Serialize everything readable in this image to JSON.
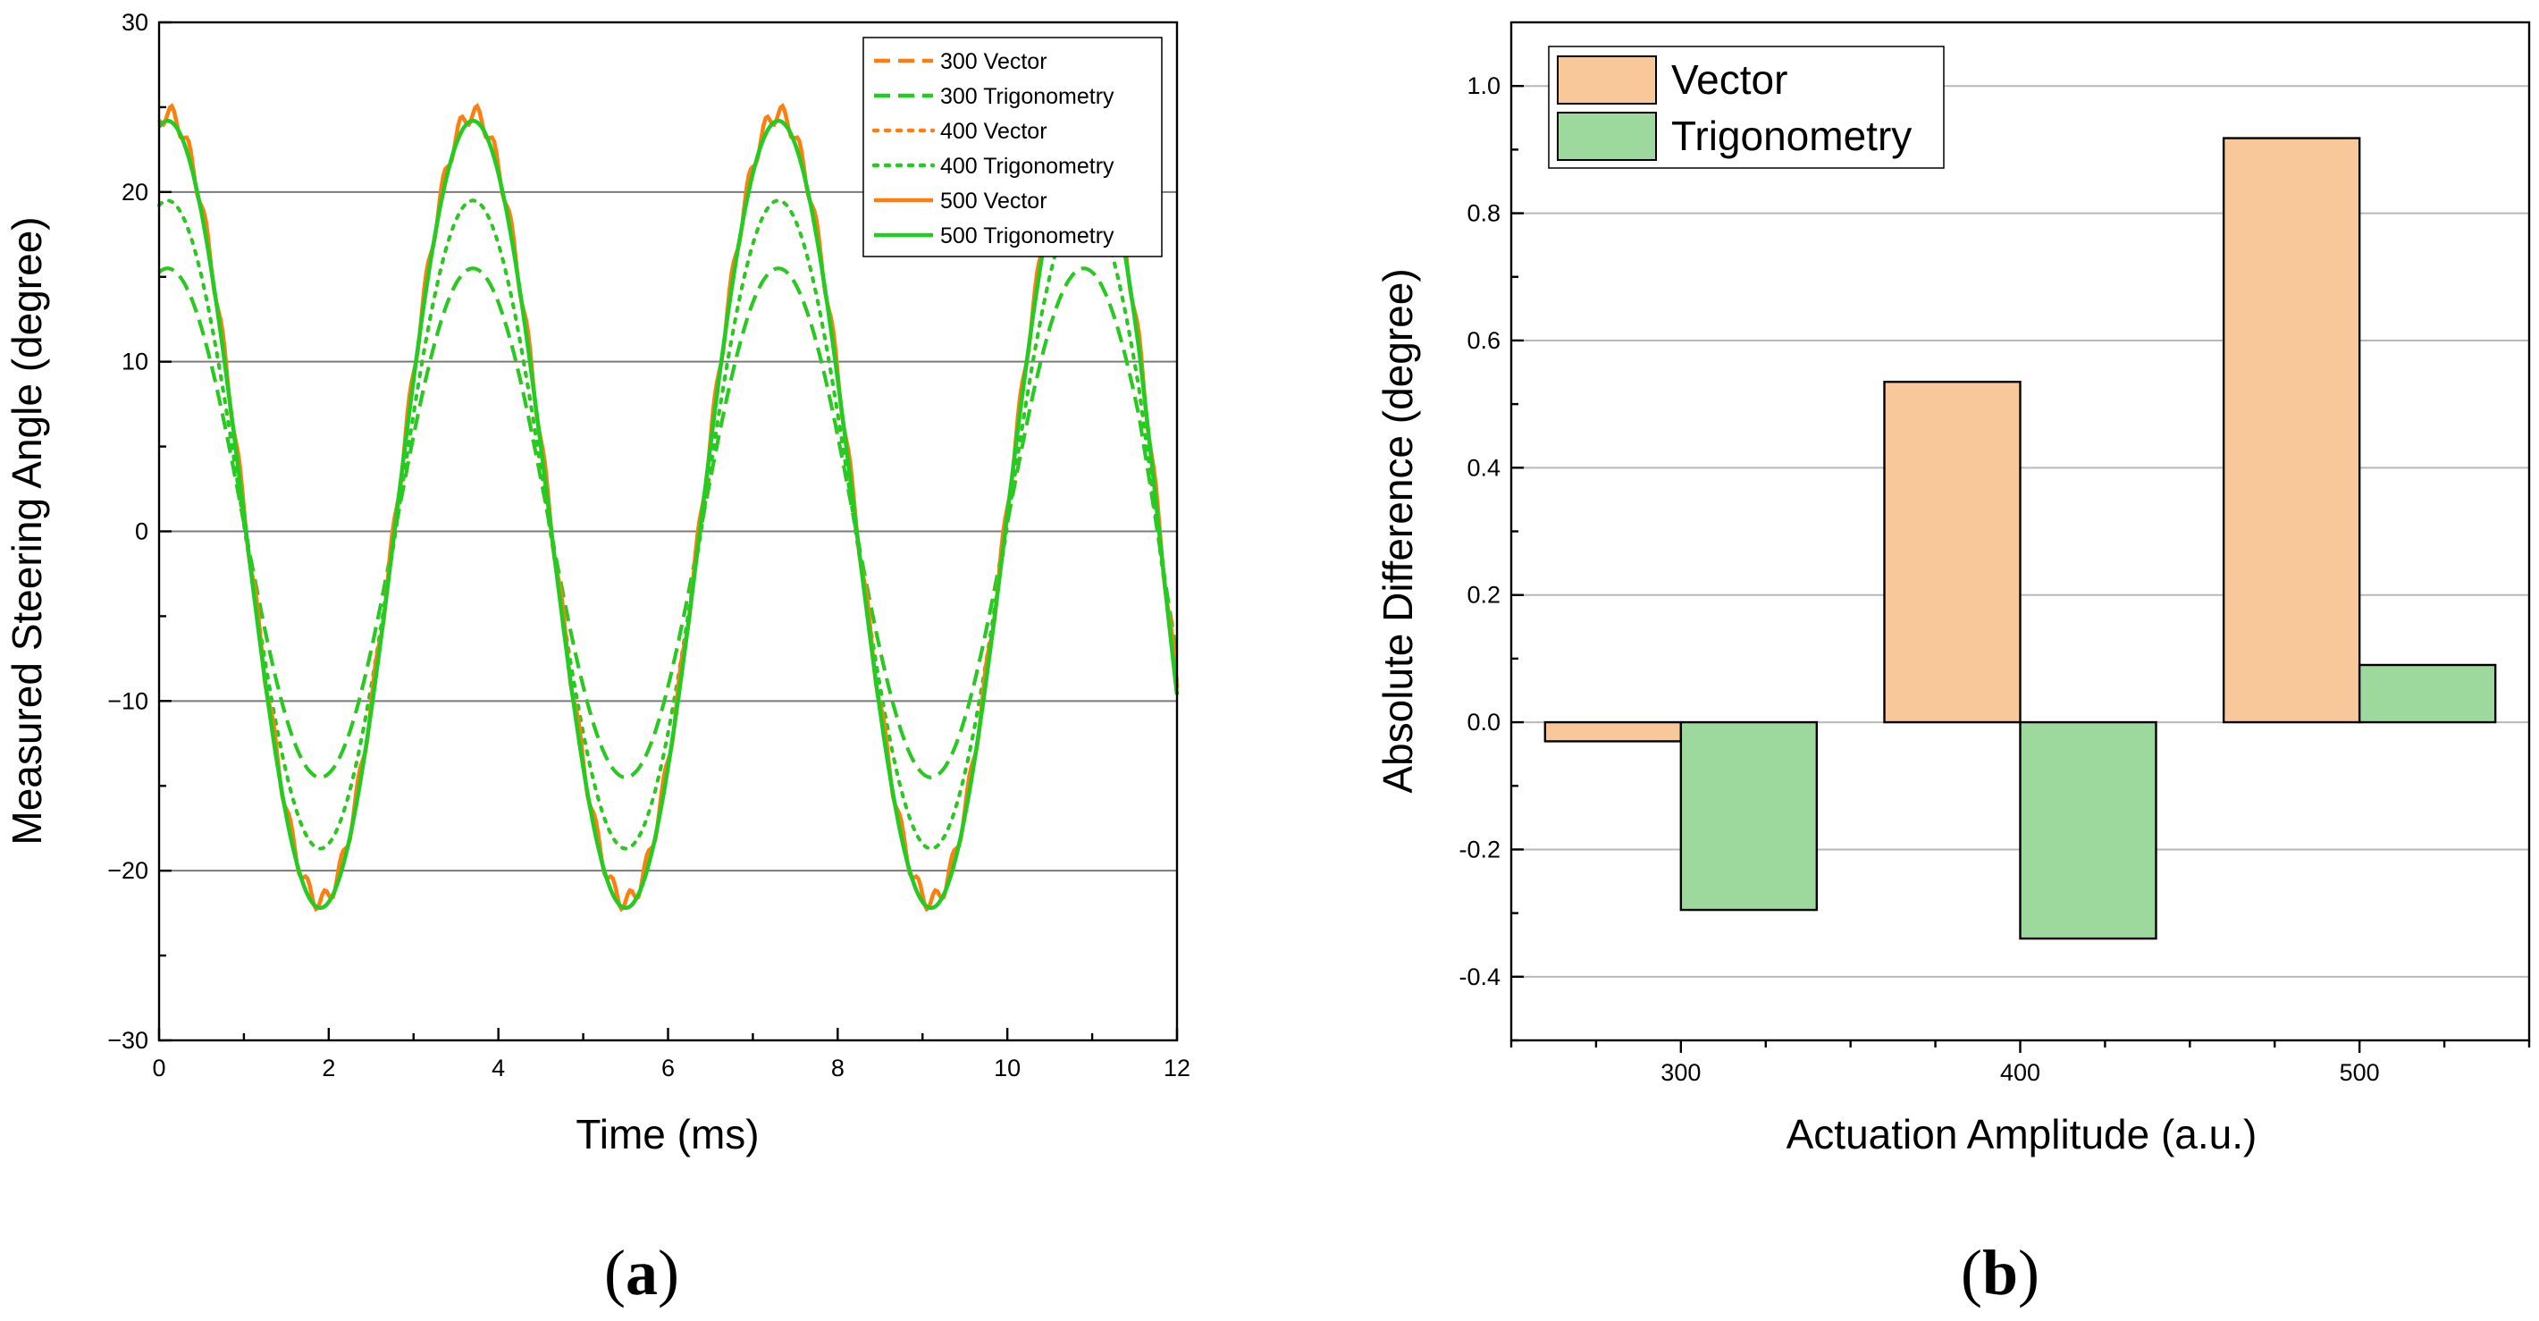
{
  "colors": {
    "vector": "#ff7f0e",
    "trigonometry": "#22cc22",
    "vector_bar": "#f8c79a",
    "trigonometry_bar": "#9dd89d"
  },
  "chart_data": [
    {
      "panel_label": "a",
      "type": "line",
      "xlabel": "Time (ms)",
      "ylabel": "Measured Steering Angle (degree)",
      "xlim": [
        0,
        12
      ],
      "ylim": [
        -30,
        30
      ],
      "xticks": [
        "0",
        "2",
        "4",
        "6",
        "8",
        "10",
        "12"
      ],
      "yticks": [
        "30",
        "20",
        "10",
        "0",
        "−10",
        "−20",
        "−30"
      ],
      "period_ms": 3.6,
      "series": [
        {
          "name": "300 Vector",
          "style": "dash",
          "color_key": "vector",
          "max": 15.5,
          "min": -14.5
        },
        {
          "name": "300 Trigonometry",
          "style": "dash",
          "color_key": "trigonometry",
          "max": 15.5,
          "min": -14.5
        },
        {
          "name": "400 Vector",
          "style": "dot",
          "color_key": "vector",
          "max": 19.5,
          "min": -18.7
        },
        {
          "name": "400 Trigonometry",
          "style": "dot",
          "color_key": "trigonometry",
          "max": 19.5,
          "min": -18.7
        },
        {
          "name": "500 Vector",
          "style": "solid",
          "color_key": "vector",
          "max": 24.6,
          "min": -21.8
        },
        {
          "name": "500 Trigonometry",
          "style": "solid",
          "color_key": "trigonometry",
          "max": 24.2,
          "min": -22.2
        }
      ]
    },
    {
      "panel_label": "b",
      "type": "bar",
      "xlabel": "Actuation Amplitude (a.u.)",
      "ylabel": "Absolute Difference (degree)",
      "ylim": [
        -0.5,
        1.1
      ],
      "yticks": [
        "1.0",
        "0.8",
        "0.6",
        "0.4",
        "0.2",
        "0.0",
        "-0.2",
        "-0.4"
      ],
      "categories": [
        "300",
        "400",
        "500"
      ],
      "series": [
        {
          "name": "Vector",
          "color_key": "vector_bar",
          "values": [
            -0.03,
            0.535,
            0.918
          ]
        },
        {
          "name": "Trigonometry",
          "color_key": "trigonometry_bar",
          "values": [
            -0.295,
            -0.34,
            0.09
          ]
        }
      ]
    }
  ]
}
